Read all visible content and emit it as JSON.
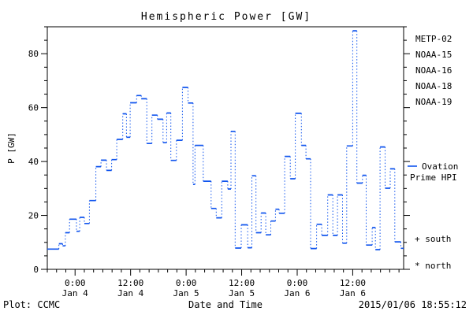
{
  "title": "Hemispheric Power [GW]",
  "y_axis_title": "P [GW]",
  "footer": {
    "plot_credit": "Plot: CCMC",
    "x_axis_title": "Date and Time",
    "timestamp": "2015/01/06 18:55:12"
  },
  "legend": {
    "satellites": [
      {
        "label": "METP-02",
        "color": "#000000"
      },
      {
        "label": "NOAA-15",
        "color": "#1155ee"
      },
      {
        "label": "NOAA-16",
        "color": "#22ccff"
      },
      {
        "label": "NOAA-18",
        "color": "#55ee77"
      },
      {
        "label": "NOAA-19",
        "color": "#ffaa22"
      }
    ],
    "line_legend": {
      "dash": "—",
      "label_line1": "Ovation",
      "label_line2": "Prime HPI",
      "color": "#1155ee"
    },
    "marker_legend": [
      {
        "symbol": "+",
        "label": "south"
      },
      {
        "symbol": "*",
        "label": "north"
      }
    ]
  },
  "chart_data": {
    "type": "line",
    "subtype": "step-dotted-vertical",
    "title": "Hemispheric Power [GW]",
    "xlabel": "Date and Time",
    "ylabel": "P [GW]",
    "line_color": "#1155ee",
    "grid": false,
    "ylim": [
      0,
      90
    ],
    "yticks": [
      0,
      20,
      40,
      60,
      80
    ],
    "y_minor_step": 5,
    "x_hours_from": "Jan 4 00:00",
    "xlim_hours": [
      -6,
      71
    ],
    "x_minor_step_hours": 2,
    "xticks": [
      {
        "t": 0,
        "time": "0:00",
        "date": "Jan 4"
      },
      {
        "t": 12,
        "time": "12:00",
        "date": "Jan 4"
      },
      {
        "t": 24,
        "time": "0:00",
        "date": "Jan 5"
      },
      {
        "t": 36,
        "time": "12:00",
        "date": "Jan 5"
      },
      {
        "t": 48,
        "time": "0:00",
        "date": "Jan 6"
      },
      {
        "t": 60,
        "time": "12:00",
        "date": "Jan 6"
      }
    ],
    "series": [
      {
        "name": "Ovation Prime HPI",
        "units": "GW",
        "step_points_t_value": [
          [
            -6.0,
            7.5
          ],
          [
            -3.5,
            9.5
          ],
          [
            -2.7,
            8.7
          ],
          [
            -2.1,
            13.6
          ],
          [
            -1.2,
            18.6
          ],
          [
            0.3,
            14.1
          ],
          [
            1.0,
            19.3
          ],
          [
            2.0,
            17.0
          ],
          [
            3.1,
            25.5
          ],
          [
            4.5,
            38.1
          ],
          [
            5.6,
            40.5
          ],
          [
            6.8,
            36.7
          ],
          [
            7.9,
            40.7
          ],
          [
            9.0,
            48.2
          ],
          [
            10.3,
            57.7
          ],
          [
            11.1,
            49.0
          ],
          [
            11.9,
            61.8
          ],
          [
            13.3,
            64.5
          ],
          [
            14.3,
            63.3
          ],
          [
            15.5,
            46.7
          ],
          [
            16.6,
            57.2
          ],
          [
            17.8,
            55.7
          ],
          [
            19.0,
            47.0
          ],
          [
            19.8,
            58.0
          ],
          [
            20.7,
            40.4
          ],
          [
            21.9,
            47.9
          ],
          [
            23.2,
            67.5
          ],
          [
            24.4,
            61.7
          ],
          [
            25.5,
            31.5
          ],
          [
            25.9,
            46.0
          ],
          [
            27.7,
            32.7
          ],
          [
            29.4,
            22.6
          ],
          [
            30.5,
            19.1
          ],
          [
            31.7,
            32.7
          ],
          [
            33.0,
            29.8
          ],
          [
            33.7,
            51.2
          ],
          [
            34.6,
            7.9
          ],
          [
            35.9,
            16.5
          ],
          [
            37.3,
            8.0
          ],
          [
            38.2,
            34.7
          ],
          [
            39.1,
            13.6
          ],
          [
            40.2,
            20.9
          ],
          [
            41.2,
            12.8
          ],
          [
            42.3,
            17.9
          ],
          [
            43.3,
            22.3
          ],
          [
            44.1,
            20.8
          ],
          [
            45.3,
            41.9
          ],
          [
            46.5,
            33.6
          ],
          [
            47.6,
            57.9
          ],
          [
            48.9,
            46.0
          ],
          [
            49.9,
            41.0
          ],
          [
            50.9,
            7.7
          ],
          [
            52.2,
            16.7
          ],
          [
            53.3,
            12.6
          ],
          [
            54.6,
            27.6
          ],
          [
            55.7,
            12.6
          ],
          [
            56.7,
            27.6
          ],
          [
            57.8,
            9.7
          ],
          [
            58.7,
            45.8
          ],
          [
            60.0,
            88.5
          ],
          [
            60.9,
            32.0
          ],
          [
            62.1,
            34.9
          ],
          [
            62.9,
            9.0
          ],
          [
            64.2,
            15.5
          ],
          [
            64.9,
            7.3
          ],
          [
            65.9,
            45.4
          ],
          [
            67.0,
            30.1
          ],
          [
            68.1,
            37.3
          ],
          [
            69.1,
            10.2
          ],
          [
            70.4,
            7.8
          ]
        ],
        "end_t": 71.0
      }
    ]
  }
}
